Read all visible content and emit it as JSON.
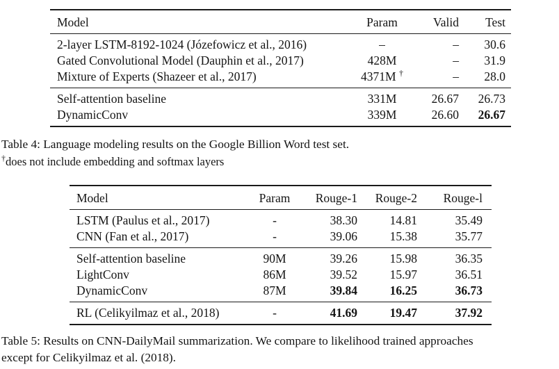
{
  "table4": {
    "headers": [
      "Model",
      "Param",
      "Valid",
      "Test"
    ],
    "rows": [
      {
        "model": "2-layer LSTM-8192-1024 (Józefowicz et al., 2016)",
        "param": "–",
        "valid": "–",
        "test": "30.6"
      },
      {
        "model": "Gated Convolutional Model (Dauphin et al., 2017)",
        "param": "428M",
        "valid": "–",
        "test": "31.9"
      },
      {
        "model": "Mixture of Experts (Shazeer et al., 2017)",
        "param": "4371M",
        "param_dagger": "†",
        "valid": "–",
        "test": "28.0"
      },
      {
        "model": "Self-attention baseline",
        "param": "331M",
        "valid": "26.67",
        "test": "26.73"
      },
      {
        "model": "DynamicConv",
        "param": "339M",
        "valid": "26.60",
        "test": "26.67"
      }
    ],
    "caption": "Table 4: Language modeling results on the Google Billion Word test set.",
    "footnote_symbol": "†",
    "footnote_text": "does not include embedding and softmax layers"
  },
  "table5": {
    "headers": [
      "Model",
      "Param",
      "Rouge-1",
      "Rouge-2",
      "Rouge-l"
    ],
    "rows": [
      {
        "model": "LSTM (Paulus et al., 2017)",
        "param": "-",
        "rouge1": "38.30",
        "rouge2": "14.81",
        "rougel": "35.49"
      },
      {
        "model": "CNN (Fan et al., 2017)",
        "param": "-",
        "rouge1": "39.06",
        "rouge2": "15.38",
        "rougel": "35.77"
      },
      {
        "model": "Self-attention baseline",
        "param": "90M",
        "rouge1": "39.26",
        "rouge2": "15.98",
        "rougel": "36.35"
      },
      {
        "model": "LightConv",
        "param": "86M",
        "rouge1": "39.52",
        "rouge2": "15.97",
        "rougel": "36.51"
      },
      {
        "model": "DynamicConv",
        "param": "87M",
        "rouge1": "39.84",
        "rouge2": "16.25",
        "rougel": "36.73"
      },
      {
        "model": "RL (Celikyilmaz et al., 2018)",
        "param": "-",
        "rouge1": "41.69",
        "rouge2": "19.47",
        "rougel": "37.92"
      }
    ],
    "caption_lines": [
      "Table 5: Results on CNN-DailyMail summarization. We compare to likelihood trained approaches",
      "except for Celikyilmaz et al. (2018)."
    ]
  }
}
